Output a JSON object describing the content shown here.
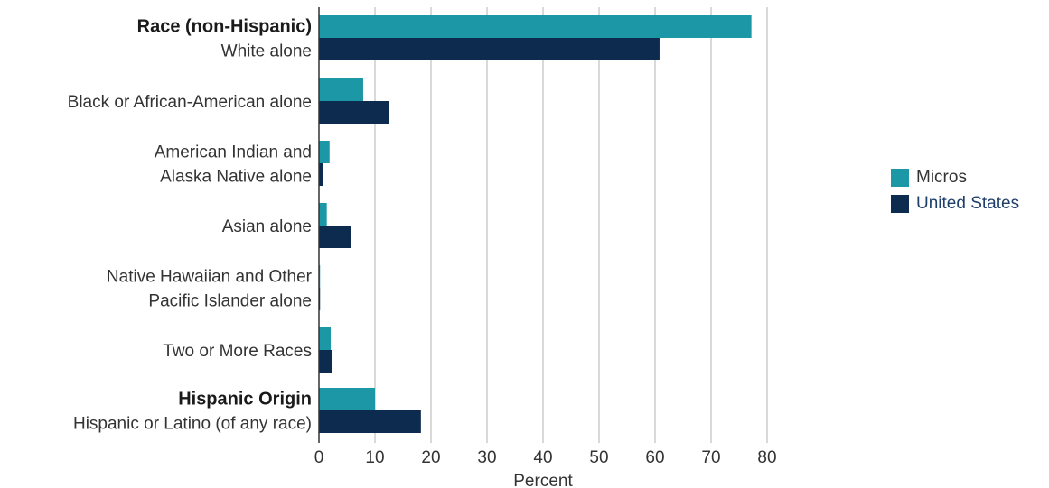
{
  "colors": {
    "micros": "#1c97a6",
    "united_states": "#0d2a4f",
    "grid": "#b3b3b3",
    "axis": "#333333",
    "legend_text_us": "#1f3f6b",
    "legend_text_micros": "#333333"
  },
  "chart_data": {
    "type": "bar",
    "orientation": "horizontal",
    "title": "",
    "xlabel": "Percent",
    "ylabel": "",
    "xlim": [
      0,
      80
    ],
    "xticks": [
      0,
      10,
      20,
      30,
      40,
      50,
      60,
      70,
      80
    ],
    "grid": true,
    "legend_position": "right",
    "categories": [
      {
        "group": "Race (non-Hispanic)",
        "lines": [
          "White alone"
        ]
      },
      {
        "group": "",
        "lines": [
          "Black or African-American alone"
        ]
      },
      {
        "group": "",
        "lines": [
          "American Indian and",
          "Alaska Native alone"
        ]
      },
      {
        "group": "",
        "lines": [
          "Asian alone"
        ]
      },
      {
        "group": "",
        "lines": [
          "Native Hawaiian and Other",
          "Pacific Islander alone"
        ]
      },
      {
        "group": "",
        "lines": [
          "Two or More Races"
        ]
      },
      {
        "group": "Hispanic Origin",
        "lines": [
          "Hispanic or Latino (of any race)"
        ]
      }
    ],
    "series": [
      {
        "name": "Micros",
        "values": [
          77.2,
          7.9,
          1.9,
          1.4,
          0.2,
          2.1,
          10.0
        ]
      },
      {
        "name": "United States",
        "values": [
          60.8,
          12.5,
          0.7,
          5.8,
          0.2,
          2.3,
          18.2
        ]
      }
    ]
  },
  "legend": {
    "items": [
      {
        "label": "Micros"
      },
      {
        "label": "United States"
      }
    ]
  }
}
